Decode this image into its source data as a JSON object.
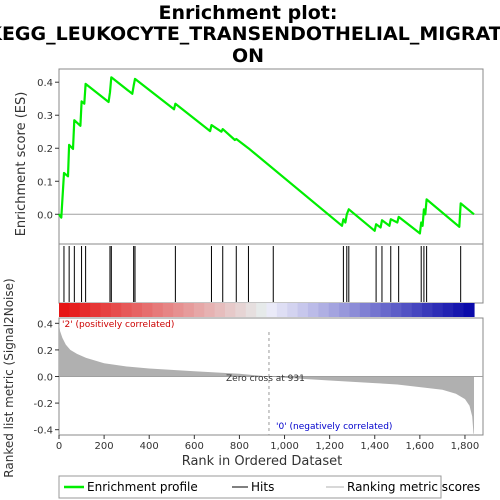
{
  "title_lines": [
    "Enrichment plot:",
    "KEGG_LEUKOCYTE_TRANSENDOTHELIAL_MIGRATI",
    "ON"
  ],
  "colors": {
    "es_line": "#00ee00",
    "positive_label": "#cc0000",
    "negative_label": "#0000cc",
    "ranked_fill": "#b0b0b0",
    "zero_line": "#a0a0a0"
  },
  "chart_data": [
    {
      "type": "line",
      "name": "enrichment-profile",
      "ylabel": "Enrichment score (ES)",
      "xlim": [
        0,
        1880
      ],
      "ylim": [
        -0.09,
        0.44
      ],
      "yticks": [
        "0.0",
        "0.1",
        "0.2",
        "0.3",
        "0.4"
      ],
      "ytick_values": [
        0.0,
        0.1,
        0.2,
        0.3,
        0.4
      ],
      "points": [
        [
          0,
          0
        ],
        [
          10,
          -0.01
        ],
        [
          22,
          0.125
        ],
        [
          40,
          0.115
        ],
        [
          45,
          0.21
        ],
        [
          62,
          0.198
        ],
        [
          68,
          0.285
        ],
        [
          95,
          0.268
        ],
        [
          100,
          0.342
        ],
        [
          112,
          0.335
        ],
        [
          118,
          0.395
        ],
        [
          220,
          0.34
        ],
        [
          226,
          0.37
        ],
        [
          232,
          0.415
        ],
        [
          325,
          0.365
        ],
        [
          331,
          0.39
        ],
        [
          337,
          0.41
        ],
        [
          510,
          0.318
        ],
        [
          516,
          0.335
        ],
        [
          670,
          0.252
        ],
        [
          676,
          0.27
        ],
        [
          720,
          0.25
        ],
        [
          726,
          0.258
        ],
        [
          780,
          0.225
        ],
        [
          786,
          0.228
        ],
        [
          840,
          0.2
        ],
        [
          1255,
          -0.035
        ],
        [
          1261,
          -0.015
        ],
        [
          1270,
          -0.025
        ],
        [
          1276,
          0.0
        ],
        [
          1285,
          0.015
        ],
        [
          1400,
          -0.05
        ],
        [
          1406,
          -0.03
        ],
        [
          1426,
          -0.04
        ],
        [
          1432,
          -0.018
        ],
        [
          1465,
          -0.035
        ],
        [
          1471,
          -0.015
        ],
        [
          1500,
          -0.025
        ],
        [
          1506,
          -0.008
        ],
        [
          1600,
          -0.058
        ],
        [
          1606,
          -0.025
        ],
        [
          1612,
          -0.035
        ],
        [
          1618,
          0.015
        ],
        [
          1624,
          0.0
        ],
        [
          1630,
          0.045
        ],
        [
          1775,
          -0.038
        ],
        [
          1781,
          0.033
        ],
        [
          1840,
          0.0
        ]
      ]
    },
    {
      "type": "hits",
      "name": "hits",
      "positions": [
        22,
        45,
        68,
        100,
        118,
        226,
        232,
        331,
        337,
        516,
        676,
        726,
        786,
        840,
        950,
        1261,
        1276,
        1285,
        1406,
        1432,
        1471,
        1506,
        1606,
        1618,
        1630,
        1781
      ]
    },
    {
      "type": "area",
      "name": "ranked-list-metric",
      "xlabel": "Rank in Ordered Dataset",
      "ylabel": "Ranked list metric (Signal2Noise)",
      "xlim": [
        0,
        1880
      ],
      "ylim": [
        -0.44,
        0.44
      ],
      "xticks": [
        "0",
        "200",
        "400",
        "600",
        "800",
        "1,000",
        "1,200",
        "1,400",
        "1,600",
        "1,800"
      ],
      "xtick_values": [
        0,
        200,
        400,
        600,
        800,
        1000,
        1200,
        1400,
        1600,
        1800
      ],
      "yticks": [
        "0.4",
        "0.2",
        "0.0",
        "-0.2",
        "-0.4"
      ],
      "ytick_values": [
        0.4,
        0.2,
        0.0,
        -0.2,
        -0.4
      ],
      "points": [
        [
          0,
          0.4
        ],
        [
          5,
          0.34
        ],
        [
          15,
          0.29
        ],
        [
          30,
          0.24
        ],
        [
          50,
          0.2
        ],
        [
          80,
          0.17
        ],
        [
          120,
          0.14
        ],
        [
          200,
          0.1
        ],
        [
          300,
          0.075
        ],
        [
          400,
          0.06
        ],
        [
          500,
          0.05
        ],
        [
          600,
          0.04
        ],
        [
          700,
          0.03
        ],
        [
          800,
          0.02
        ],
        [
          931,
          0.0
        ],
        [
          1000,
          -0.01
        ],
        [
          1200,
          -0.03
        ],
        [
          1400,
          -0.05
        ],
        [
          1500,
          -0.06
        ],
        [
          1600,
          -0.08
        ],
        [
          1700,
          -0.1
        ],
        [
          1760,
          -0.13
        ],
        [
          1800,
          -0.17
        ],
        [
          1820,
          -0.22
        ],
        [
          1832,
          -0.3
        ],
        [
          1838,
          -0.43
        ],
        [
          1840,
          -0.43
        ]
      ],
      "annotations": {
        "positive": "'2' (positively correlated)",
        "negative": "'0' (negatively correlated)",
        "zero_cross": "Zero cross at 931",
        "zero_cross_value": 931
      }
    }
  ],
  "legend": [
    {
      "label": "Enrichment profile",
      "color": "#00ee00",
      "style": "line-thick"
    },
    {
      "label": "Hits",
      "color": "#000000",
      "style": "line-thin"
    },
    {
      "label": "Ranking metric scores",
      "color": "#b0b0b0",
      "style": "line-thin"
    }
  ]
}
